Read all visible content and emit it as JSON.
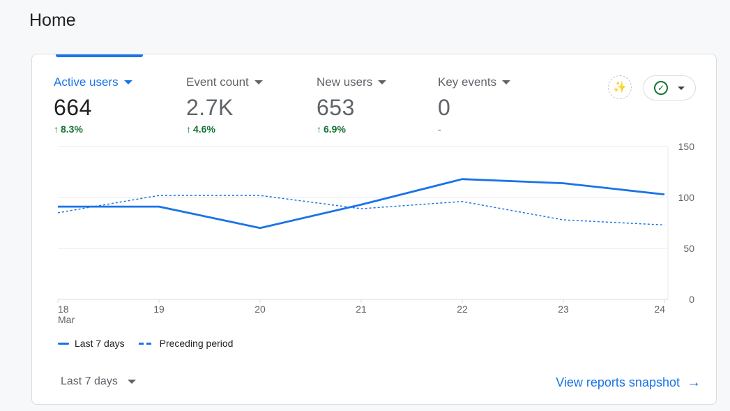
{
  "page": {
    "title": "Home"
  },
  "metrics": [
    {
      "label": "Active users",
      "value": "664",
      "change": "8.3%",
      "trend": "up",
      "active": true
    },
    {
      "label": "Event count",
      "value": "2.7K",
      "change": "4.6%",
      "trend": "up",
      "active": false
    },
    {
      "label": "New users",
      "value": "653",
      "change": "6.9%",
      "trend": "up",
      "active": false
    },
    {
      "label": "Key events",
      "value": "0",
      "change": "-",
      "trend": "none",
      "active": false
    }
  ],
  "icons": {
    "insights": "insights-icon",
    "status": "check-circle-icon"
  },
  "colors": {
    "accent": "#1a73e8",
    "positive": "#137333",
    "grid": "#e8eaed"
  },
  "chart_data": {
    "type": "line",
    "title": "Active users",
    "categories": [
      "18",
      "19",
      "20",
      "21",
      "22",
      "23",
      "24"
    ],
    "x_sublabel": {
      "index": 0,
      "text": "Mar"
    },
    "series": [
      {
        "name": "Last 7 days",
        "style": "solid",
        "values": [
          91,
          91,
          70,
          93,
          118,
          114,
          103
        ]
      },
      {
        "name": "Preceding period",
        "style": "dashed",
        "values": [
          85,
          102,
          102,
          89,
          96,
          78,
          73
        ]
      }
    ],
    "yticks": [
      "150",
      "100",
      "50",
      "0"
    ],
    "ytick_values": [
      150,
      100,
      50,
      0
    ],
    "ylim": [
      0,
      150
    ],
    "legend_position": "bottom-left"
  },
  "footer": {
    "date_range": "Last 7 days",
    "view_link": "View reports snapshot"
  }
}
